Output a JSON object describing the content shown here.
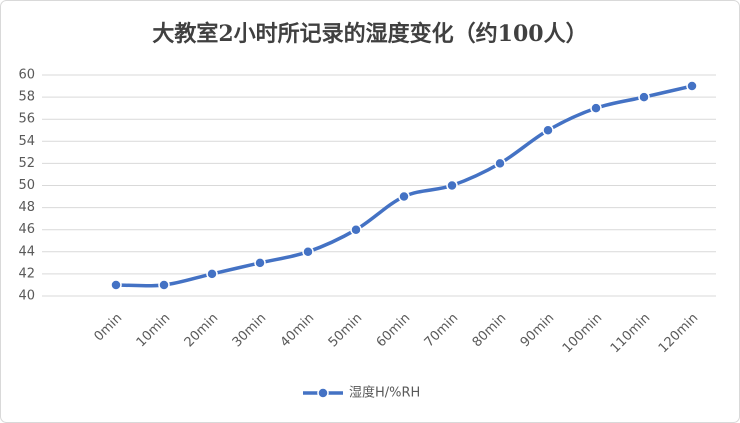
{
  "chart_data": {
    "type": "line",
    "title": "大教室2小时所记录的湿度变化（约100人）",
    "categories": [
      "0min",
      "10min",
      "20min",
      "30min",
      "40min",
      "50min",
      "60min",
      "70min",
      "80min",
      "90min",
      "100min",
      "110min",
      "120min"
    ],
    "series": [
      {
        "name": "湿度H/%RH",
        "color": "#4472c4",
        "values": [
          41,
          41,
          42,
          43,
          44,
          46,
          49,
          50,
          52,
          55,
          57,
          58,
          59
        ]
      }
    ],
    "ylim": [
      40,
      60
    ],
    "yticks": [
      40,
      42,
      44,
      46,
      48,
      50,
      52,
      54,
      56,
      58,
      60
    ],
    "grid": true,
    "legend": "bottom"
  }
}
